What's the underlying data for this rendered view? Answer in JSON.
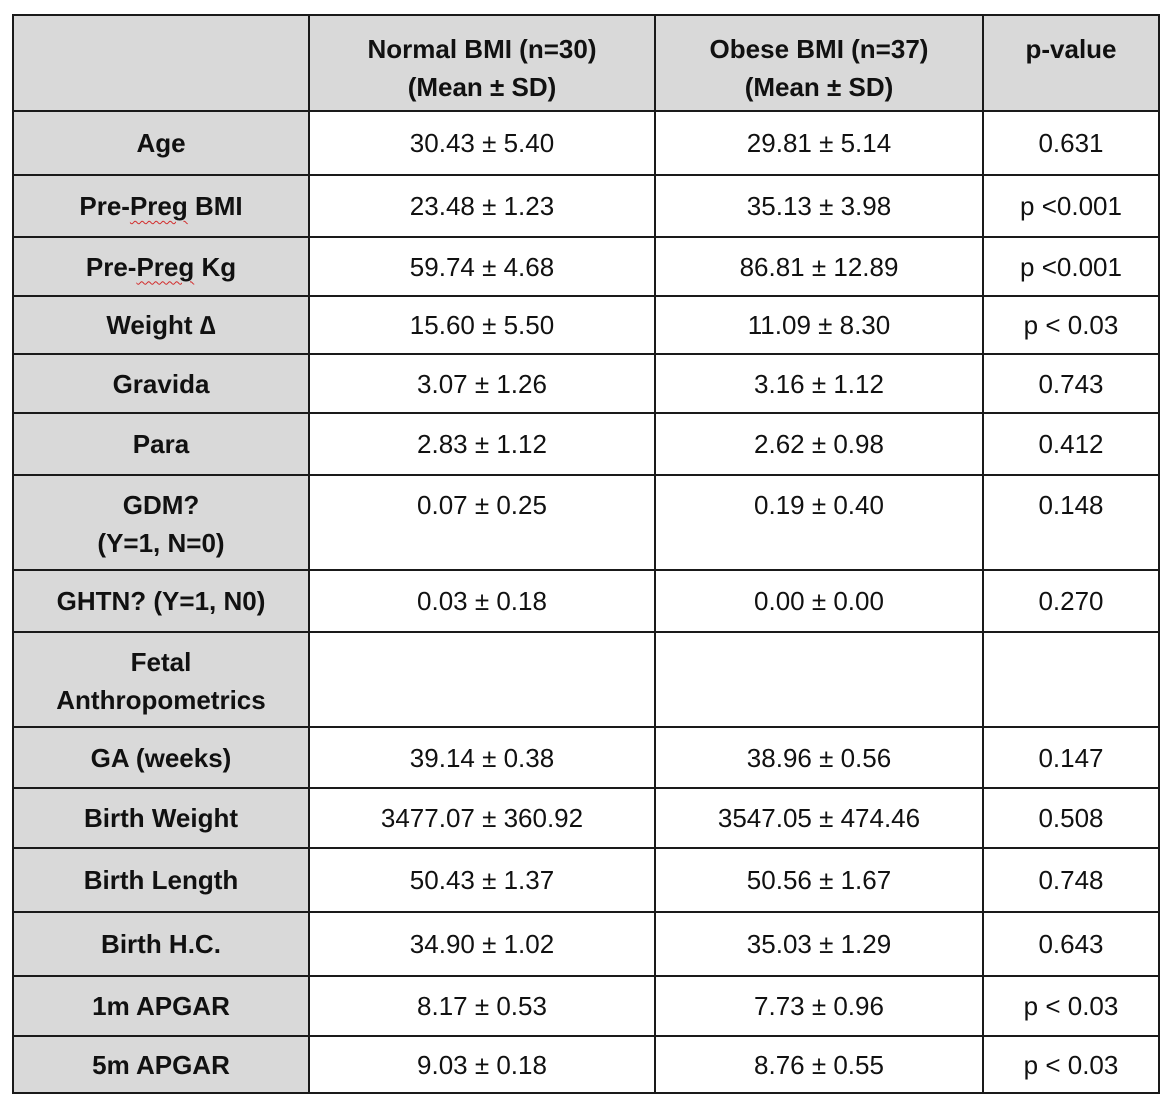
{
  "header": {
    "corner": "",
    "normal_line1": "Normal BMI (n=30)",
    "normal_line2": "(Mean ± SD)",
    "obese_line1": "Obese BMI (n=37)",
    "obese_line2": "(Mean ± SD)",
    "pvalue": "p-value"
  },
  "rows": [
    {
      "label": "Age",
      "normal": "30.43 ± 5.40",
      "obese": "29.81 ± 5.14",
      "p": "0.631"
    },
    {
      "label_prefix": "Pre-",
      "label_flag": "Preg",
      "label_suffix": " BMI",
      "normal": "23.48 ± 1.23",
      "obese": "35.13 ± 3.98",
      "p": "p <0.001"
    },
    {
      "label_prefix": "Pre-",
      "label_flag": "Preg",
      "label_suffix": " Kg",
      "normal": "59.74 ± 4.68",
      "obese": "86.81 ± 12.89",
      "p": "p <0.001"
    },
    {
      "label": "Weight ∆",
      "normal": "15.60 ± 5.50",
      "obese": "11.09 ± 8.30",
      "p": "p < 0.03"
    },
    {
      "label": "Gravida",
      "normal": "3.07 ± 1.26",
      "obese": "3.16 ± 1.12",
      "p": "0.743"
    },
    {
      "label": "Para",
      "normal": "2.83 ± 1.12",
      "obese": "2.62 ± 0.98",
      "p": "0.412"
    },
    {
      "label_line1": "GDM?",
      "label_line2": "(Y=1, N=0)",
      "normal": "0.07 ± 0.25",
      "obese": "0.19 ± 0.40",
      "p": "0.148"
    },
    {
      "label": "GHTN? (Y=1, N0)",
      "normal": "0.03 ± 0.18",
      "obese": "0.00 ± 0.00",
      "p": "0.270"
    },
    {
      "label_line1": "Fetal",
      "label_line2": "Anthropometrics",
      "normal": "",
      "obese": "",
      "p": ""
    },
    {
      "label": "GA (weeks)",
      "normal": "39.14 ± 0.38",
      "obese": "38.96 ± 0.56",
      "p": "0.147"
    },
    {
      "label": "Birth Weight",
      "normal": "3477.07 ± 360.92",
      "obese": "3547.05 ± 474.46",
      "p": "0.508"
    },
    {
      "label": "Birth Length",
      "normal": "50.43 ± 1.37",
      "obese": "50.56 ± 1.67",
      "p": "0.748"
    },
    {
      "label": "Birth H.C.",
      "normal": "34.90 ± 1.02",
      "obese": "35.03 ± 1.29",
      "p": "0.643"
    },
    {
      "label": "1m APGAR",
      "normal": "8.17 ± 0.53",
      "obese": "7.73 ± 0.96",
      "p": "p < 0.03"
    },
    {
      "label": "5m APGAR",
      "normal": "9.03 ± 0.18",
      "obese": "8.76 ± 0.55",
      "p": "p < 0.03"
    }
  ]
}
